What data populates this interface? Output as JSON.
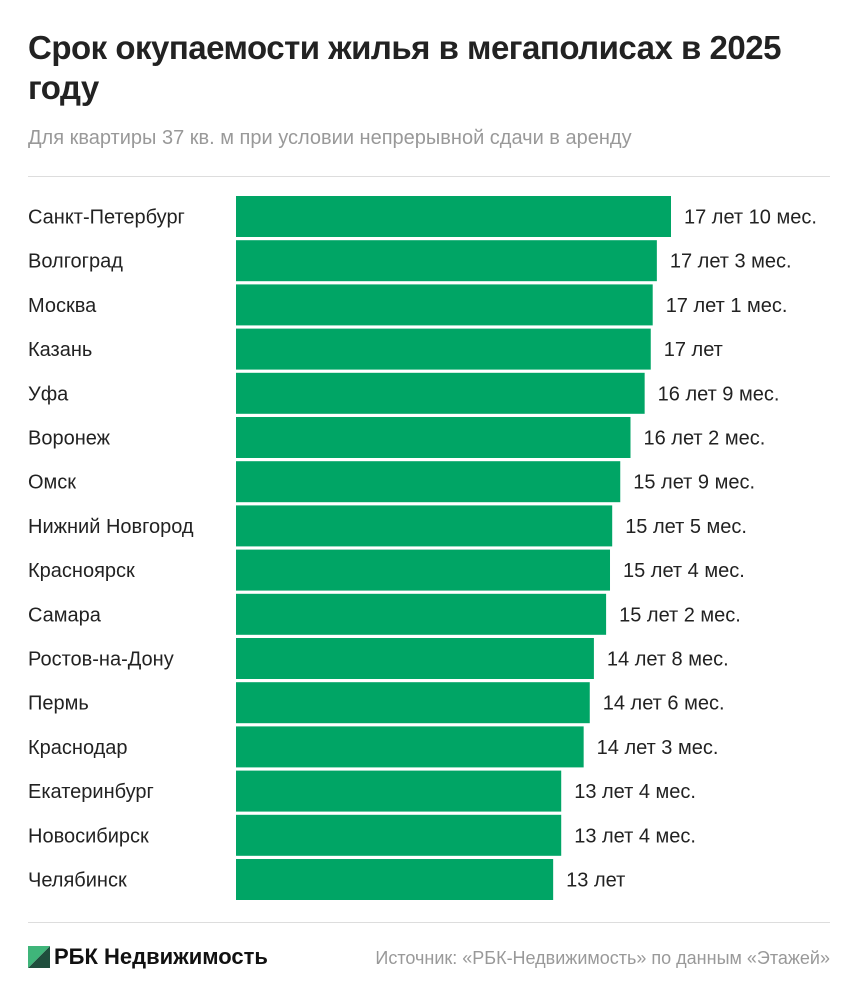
{
  "title": "Срок окупаемости жилья в мегаполисах в 2025 году",
  "subtitle": "Для квартиры 37 кв. м при условии непрерывной сдачи в аренду",
  "footer": {
    "logo": "РБК Недвижимость",
    "source": "Источник: «РБК-Недвижимость» по данным «Этажей»"
  },
  "colors": {
    "bar": "#00a565",
    "logo_green": "#3fb57a",
    "logo_dark": "#1f4e3d"
  },
  "chart_data": {
    "type": "bar",
    "orientation": "horizontal",
    "unit": "years",
    "xlim": [
      0,
      18
    ],
    "grid": false,
    "categories": [
      "Санкт-Петербург",
      "Волгоград",
      "Москва",
      "Казань",
      "Уфа",
      "Воронеж",
      "Омск",
      "Нижний Новгород",
      "Красноярск",
      "Самара",
      "Ростов-на-Дону",
      "Пермь",
      "Краснодар",
      "Екатеринбург",
      "Новосибирск",
      "Челябинск"
    ],
    "values": [
      17.83,
      17.25,
      17.08,
      17,
      16.75,
      16.17,
      15.75,
      15.42,
      15.33,
      15.17,
      14.67,
      14.5,
      14.25,
      13.33,
      13.33,
      13
    ],
    "data_labels": [
      "17 лет 10 мес.",
      "17 лет 3 мес.",
      "17 лет 1 мес.",
      "17 лет",
      "16 лет 9 мес.",
      "16 лет 2 мес.",
      "15 лет 9 мес.",
      "15 лет 5 мес.",
      "15 лет 4 мес.",
      "15 лет 2 мес.",
      "14 лет 8 мес.",
      "14 лет 6 мес.",
      "14 лет 3 мес.",
      "13 лет 4 мес.",
      "13 лет 4 мес.",
      "13 лет"
    ]
  }
}
